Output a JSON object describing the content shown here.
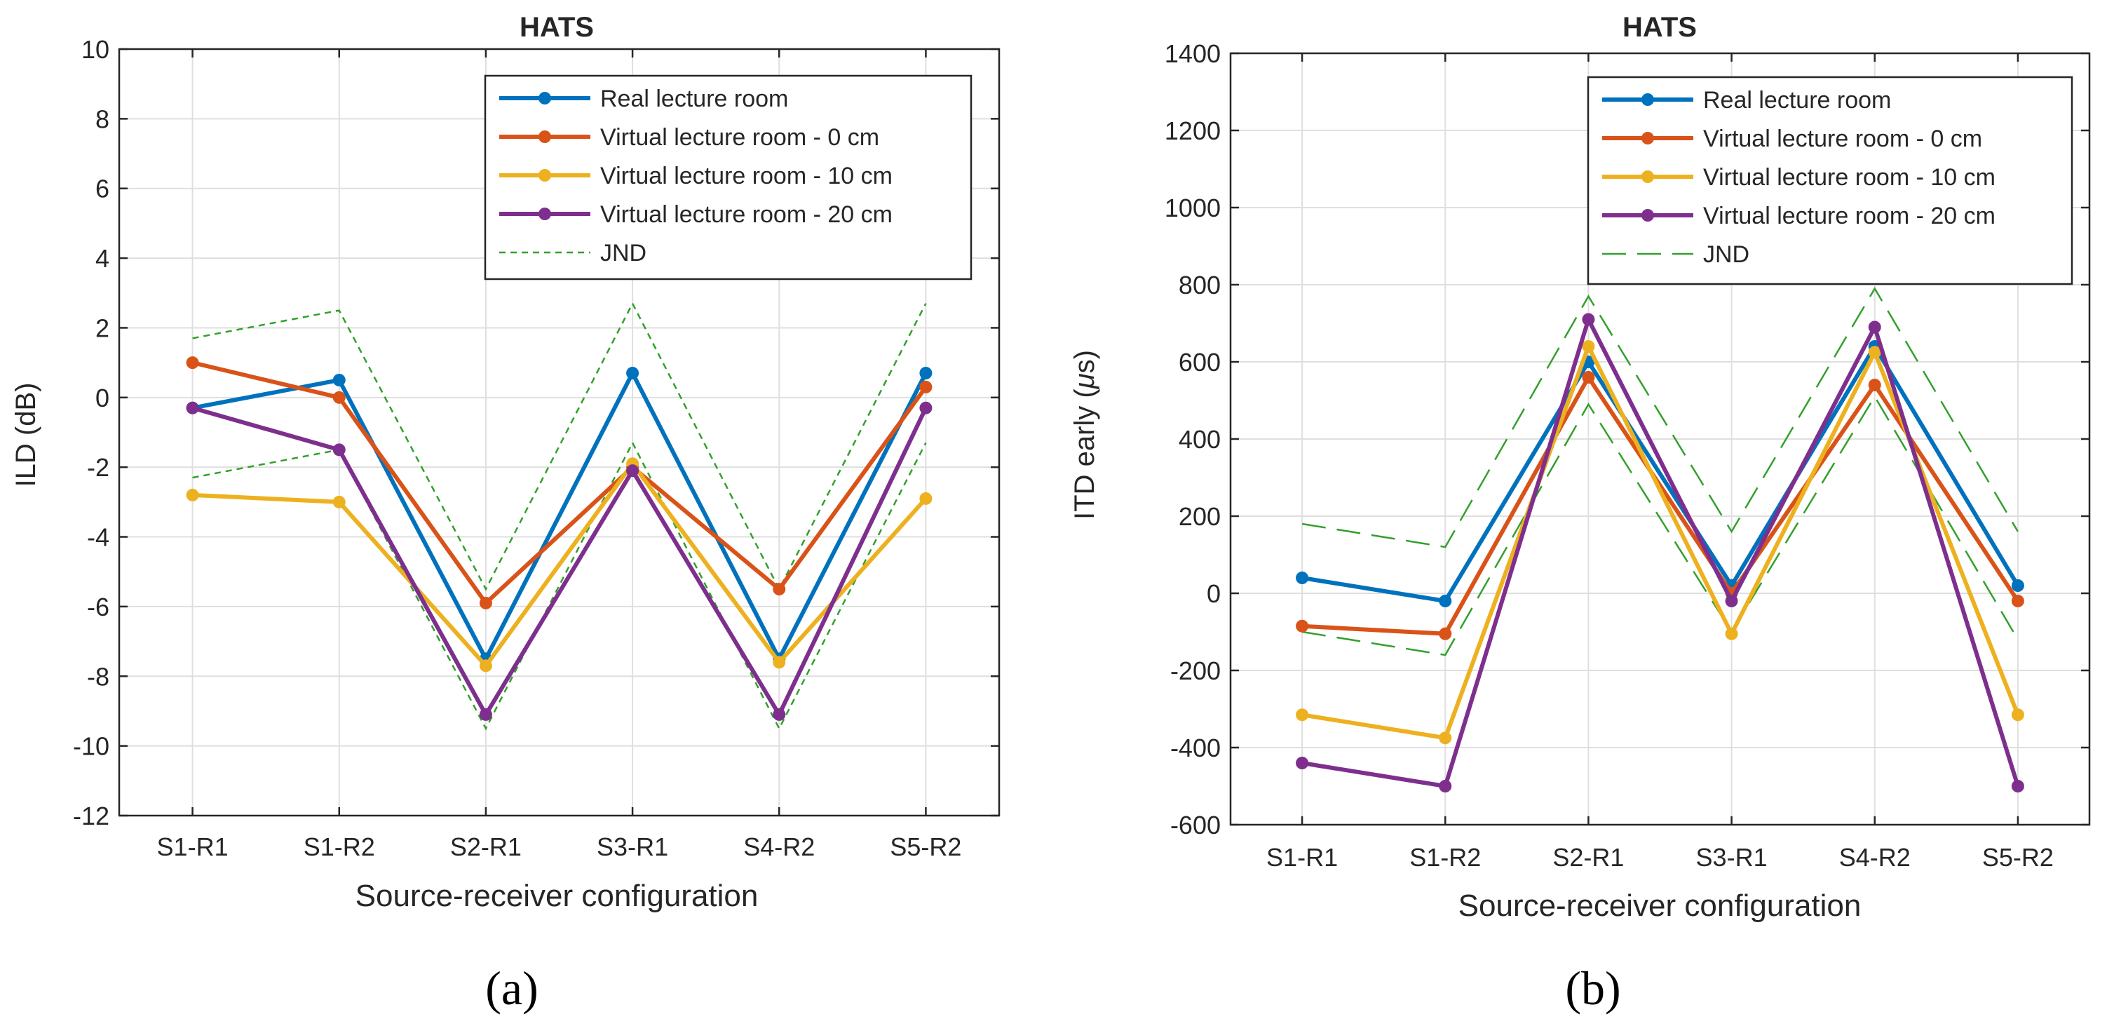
{
  "chart_data": [
    {
      "type": "line",
      "title": "HATS",
      "xlabel": "Source-receiver configuration",
      "ylabel": "ILD (dB)",
      "caption": "(a)",
      "categories": [
        "S1-R1",
        "S1-R2",
        "S2-R1",
        "S3-R1",
        "S4-R2",
        "S5-R2"
      ],
      "ylim": [
        -12,
        10
      ],
      "yticks": [
        -12,
        -10,
        -8,
        -6,
        -4,
        -2,
        0,
        2,
        4,
        6,
        8,
        10
      ],
      "grid": true,
      "legend_position": "top-right",
      "series": [
        {
          "name": "Real lecture room",
          "color": "#0072BD",
          "values": [
            -0.3,
            0.5,
            -7.5,
            0.7,
            -7.5,
            0.7
          ]
        },
        {
          "name": "Virtual lecture room - 0 cm",
          "color": "#D95319",
          "values": [
            1.0,
            0.0,
            -5.9,
            -2.0,
            -5.5,
            0.3
          ]
        },
        {
          "name": "Virtual lecture room - 10 cm",
          "color": "#EDB120",
          "values": [
            -2.8,
            -3.0,
            -7.7,
            -1.9,
            -7.6,
            -2.9
          ]
        },
        {
          "name": "Virtual lecture room - 20 cm",
          "color": "#7E2F8E",
          "values": [
            -0.3,
            -1.5,
            -9.1,
            -2.1,
            -9.1,
            -0.3
          ]
        }
      ],
      "jnd": {
        "name": "JND",
        "color": "#33A02C",
        "dash": "short",
        "upper": [
          1.7,
          2.5,
          -5.5,
          2.7,
          -5.5,
          2.7
        ],
        "lower": [
          -2.3,
          -1.5,
          -9.5,
          -1.3,
          -9.5,
          -1.3
        ]
      }
    },
    {
      "type": "line",
      "title": "HATS",
      "xlabel": "Source-receiver configuration",
      "ylabel": "ITD early (μs)",
      "caption": "(b)",
      "categories": [
        "S1-R1",
        "S1-R2",
        "S2-R1",
        "S3-R1",
        "S4-R2",
        "S5-R2"
      ],
      "ylim": [
        -600,
        1400
      ],
      "yticks": [
        -600,
        -400,
        -200,
        0,
        200,
        400,
        600,
        800,
        1000,
        1200,
        1400
      ],
      "grid": true,
      "legend_position": "top-right",
      "series": [
        {
          "name": "Real lecture room",
          "color": "#0072BD",
          "values": [
            40,
            -20,
            600,
            20,
            640,
            20
          ]
        },
        {
          "name": "Virtual lecture room - 0 cm",
          "color": "#D95319",
          "values": [
            -85,
            -105,
            560,
            0,
            540,
            -20
          ]
        },
        {
          "name": "Virtual lecture room - 10 cm",
          "color": "#EDB120",
          "values": [
            -315,
            -375,
            640,
            -105,
            625,
            -315
          ]
        },
        {
          "name": "Virtual lecture room - 20 cm",
          "color": "#7E2F8E",
          "values": [
            -440,
            -500,
            710,
            -20,
            690,
            -500
          ]
        }
      ],
      "jnd": {
        "name": "JND",
        "color": "#33A02C",
        "dash": "long",
        "upper": [
          180,
          120,
          770,
          160,
          790,
          160
        ],
        "lower": [
          -100,
          -160,
          490,
          -100,
          510,
          -120
        ]
      }
    }
  ]
}
